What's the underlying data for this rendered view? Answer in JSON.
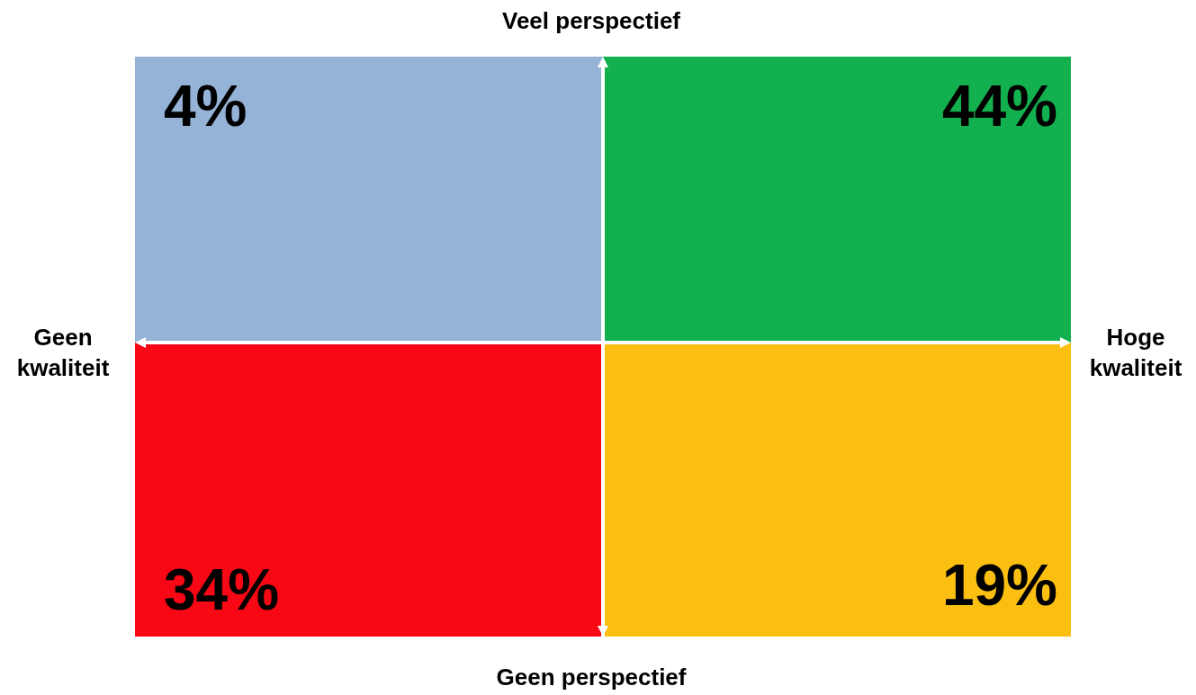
{
  "chart_data": {
    "type": "other",
    "values": [
      4,
      44,
      34,
      19
    ],
    "value_labels": [
      "4%",
      "44%",
      "34%",
      "19%"
    ],
    "colors": [
      "#95b3d7",
      "#12b04f",
      "#f80714",
      "#fbbf12"
    ],
    "annotations": [
      "Veel perspectief",
      "Geen perspectief",
      "Geen kwaliteit",
      "Hoge kwaliteit"
    ]
  }
}
